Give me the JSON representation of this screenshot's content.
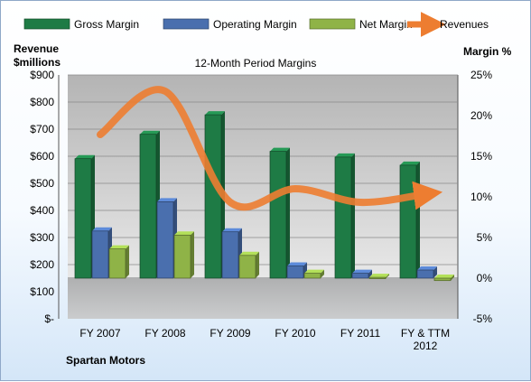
{
  "chart_data": {
    "type": "bar",
    "title": "12-Month Period Margins",
    "company": "Spartan Motors",
    "ylabel_left": [
      "Revenue",
      "$millions"
    ],
    "ylabel_right": "Margin %",
    "left_axis": {
      "min": 0,
      "max": 900,
      "ticks": [
        "$-",
        "$100",
        "$200",
        "$300",
        "$400",
        "$500",
        "$600",
        "$700",
        "$800",
        "$900"
      ]
    },
    "right_axis": {
      "min": -5,
      "max": 25,
      "ticks": [
        "-5%",
        "0%",
        "5%",
        "10%",
        "15%",
        "20%",
        "25%"
      ]
    },
    "categories": [
      "FY 2007",
      "FY 2008",
      "FY 2009",
      "FY 2010",
      "FY 2011",
      "FY & TTM\n2012"
    ],
    "series": [
      {
        "name": "Gross Margin",
        "axis": "right",
        "type": "bar",
        "color": "#1e7b45",
        "values": [
          14.7,
          17.7,
          20.1,
          15.6,
          14.9,
          13.9
        ]
      },
      {
        "name": "Operating Margin",
        "axis": "right",
        "type": "bar",
        "color": "#4a6fae",
        "values": [
          5.8,
          9.4,
          5.7,
          1.5,
          0.6,
          1.0
        ]
      },
      {
        "name": "Net Margin",
        "axis": "right",
        "type": "bar",
        "color": "#8fb347",
        "values": [
          3.6,
          5.3,
          2.8,
          0.6,
          0.1,
          -0.3
        ]
      },
      {
        "name": "Revenues",
        "axis": "left",
        "type": "line",
        "color": "#ed7d31",
        "values": [
          680,
          840,
          430,
          480,
          430,
          460
        ]
      }
    ],
    "legend_position": "top",
    "grid": true
  }
}
